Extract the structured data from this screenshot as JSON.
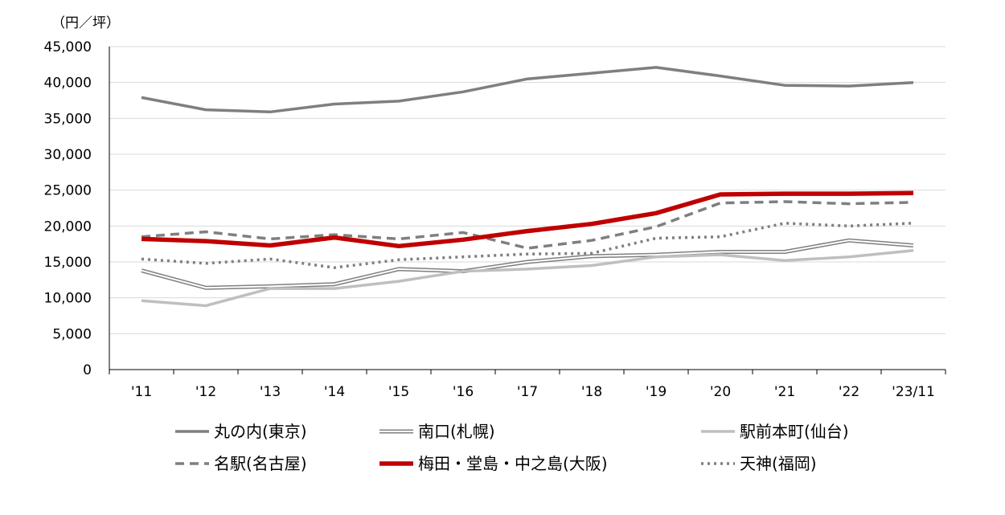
{
  "chart_data": {
    "type": "line",
    "unit_label": "（円／坪）",
    "categories": [
      "'11",
      "'12",
      "'13",
      "'14",
      "'15",
      "'16",
      "'17",
      "'18",
      "'19",
      "'20",
      "'21",
      "'22",
      "'23/11"
    ],
    "ylim": [
      0,
      45000
    ],
    "yticks": [
      0,
      5000,
      10000,
      15000,
      20000,
      25000,
      30000,
      35000,
      40000,
      45000
    ],
    "ytick_labels": [
      "0",
      "5,000",
      "10,000",
      "15,000",
      "20,000",
      "25,000",
      "30,000",
      "35,000",
      "40,000",
      "45,000"
    ],
    "grid": "horizontal",
    "legend_position": "bottom",
    "series": [
      {
        "name": "丸の内(東京)",
        "style": "solid",
        "color": "#7f7f7f",
        "values": [
          37900,
          36200,
          35900,
          37000,
          37400,
          38700,
          40500,
          41300,
          42100,
          40900,
          39600,
          39500,
          40000
        ]
      },
      {
        "name": "南口(札幌)",
        "style": "double",
        "color": "#7f7f7f",
        "values": [
          13800,
          11400,
          11600,
          11900,
          14000,
          13700,
          15000,
          15800,
          16000,
          16400,
          16400,
          18000,
          17300
        ]
      },
      {
        "name": "駅前本町(仙台)",
        "style": "solid",
        "color": "#bfbfbf",
        "values": [
          9600,
          8900,
          11300,
          11300,
          12300,
          13700,
          14000,
          14500,
          15700,
          16000,
          15200,
          15700,
          16600
        ]
      },
      {
        "name": "名駅(名古屋)",
        "style": "dashed",
        "color": "#7f7f7f",
        "values": [
          18500,
          19200,
          18200,
          18800,
          18200,
          19100,
          16900,
          18000,
          19900,
          23200,
          23400,
          23100,
          23300
        ]
      },
      {
        "name": "梅田・堂島・中之島(大阪)",
        "style": "bold",
        "color": "#c00000",
        "values": [
          18200,
          17900,
          17300,
          18400,
          17200,
          18100,
          19300,
          20300,
          21800,
          24400,
          24500,
          24500,
          24600
        ]
      },
      {
        "name": "天神(福岡)",
        "style": "dotted",
        "color": "#7f7f7f",
        "values": [
          15400,
          14800,
          15400,
          14200,
          15300,
          15700,
          16100,
          16200,
          18300,
          18500,
          20400,
          20000,
          20400
        ]
      }
    ]
  }
}
